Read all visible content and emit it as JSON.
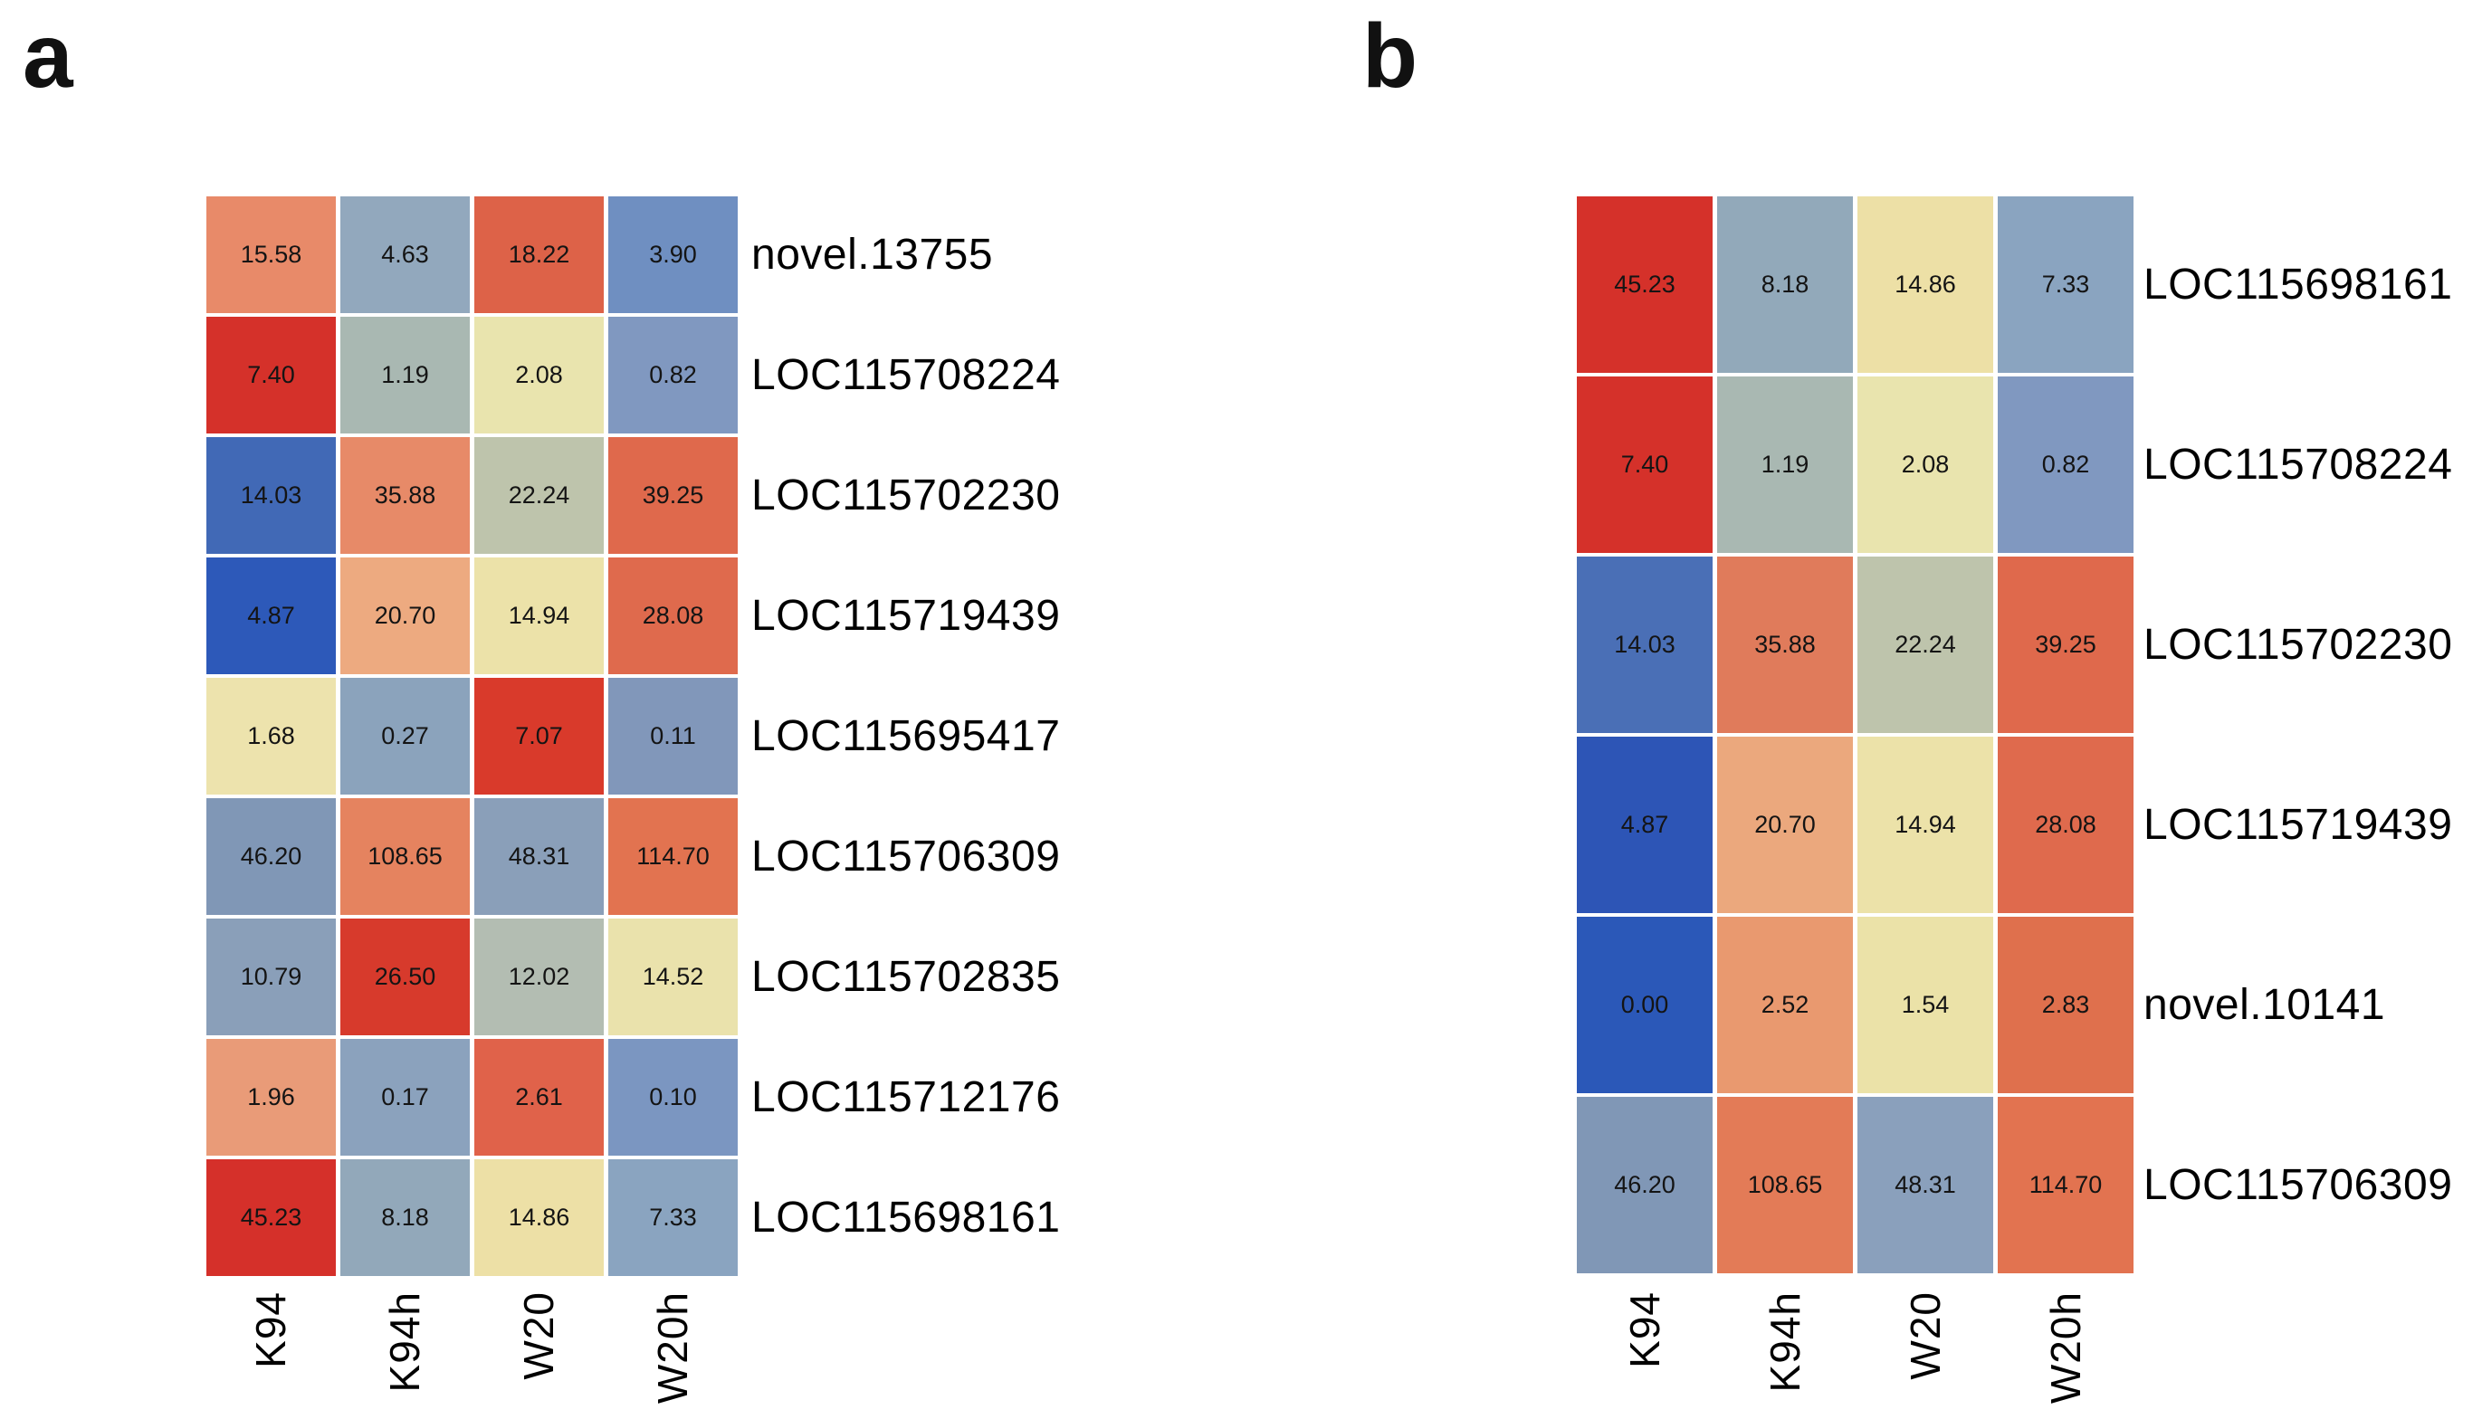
{
  "labels": {
    "panel_a": "a",
    "panel_b": "b"
  },
  "chart_data": [
    {
      "type": "heatmap",
      "panel": "a",
      "title": "a",
      "x_categories": [
        "K94",
        "K94h",
        "W20",
        "W20h"
      ],
      "y_categories": [
        "novel.13755",
        "LOC115708224",
        "LOC115702230",
        "LOC115719439",
        "LOC115695417",
        "LOC115706309",
        "LOC115702835",
        "LOC115712176",
        "LOC115698161"
      ],
      "values": [
        [
          15.58,
          4.63,
          18.22,
          3.9
        ],
        [
          7.4,
          1.19,
          2.08,
          0.82
        ],
        [
          14.03,
          35.88,
          22.24,
          39.25
        ],
        [
          4.87,
          20.7,
          14.94,
          28.08
        ],
        [
          1.68,
          0.27,
          7.07,
          0.11
        ],
        [
          46.2,
          108.65,
          48.31,
          114.7
        ],
        [
          10.79,
          26.5,
          12.02,
          14.52
        ],
        [
          1.96,
          0.17,
          2.61,
          0.1
        ],
        [
          45.23,
          8.18,
          14.86,
          7.33
        ]
      ],
      "cell_colors": [
        [
          "#e88a69",
          "#92a8bd",
          "#dd6248",
          "#6f8fc1"
        ],
        [
          "#d5312a",
          "#a9b8b2",
          "#e9e4ae",
          "#8098c0"
        ],
        [
          "#4169b6",
          "#e78a68",
          "#bec4ac",
          "#df694c"
        ],
        [
          "#2d59b9",
          "#edaa80",
          "#ece2a9",
          "#df6a4d"
        ],
        [
          "#ede3ad",
          "#8ba3bc",
          "#d93a2b",
          "#8197ba"
        ],
        [
          "#8097b6",
          "#e5835f",
          "#8a9fb9",
          "#e27350"
        ],
        [
          "#8a9fb9",
          "#d73a2c",
          "#b3bdb2",
          "#eae2ac"
        ],
        [
          "#e99b78",
          "#8ba2bd",
          "#e0624a",
          "#7b96c1"
        ],
        [
          "#d5302a",
          "#92a8ba",
          "#ede0a6",
          "#8aa4c0"
        ]
      ],
      "value_decimals": 2,
      "colormap": "RdYlBu reversed, scaled per row",
      "annotations": "values printed inside cells",
      "x_tick_rotation": -90,
      "legend": "none",
      "grid_gap_color": "#ffffff",
      "cell_text_color": "#141414"
    },
    {
      "type": "heatmap",
      "panel": "b",
      "title": "b",
      "x_categories": [
        "K94",
        "K94h",
        "W20",
        "W20h"
      ],
      "y_categories": [
        "LOC115698161",
        "LOC115708224",
        "LOC115702230",
        "LOC115719439",
        "novel.10141",
        "LOC115706309"
      ],
      "values": [
        [
          45.23,
          8.18,
          14.86,
          7.33
        ],
        [
          7.4,
          1.19,
          2.08,
          0.82
        ],
        [
          14.03,
          35.88,
          22.24,
          39.25
        ],
        [
          4.87,
          20.7,
          14.94,
          28.08
        ],
        [
          0.0,
          2.52,
          1.54,
          2.83
        ],
        [
          46.2,
          108.65,
          48.31,
          114.7
        ]
      ],
      "cell_colors": [
        [
          "#d5312a",
          "#92a9ba",
          "#ede0a6",
          "#8aa4c0"
        ],
        [
          "#d5312a",
          "#a9b8b2",
          "#e9e4ae",
          "#8098c0"
        ],
        [
          "#4a6fb6",
          "#e07b5b",
          "#bec4ac",
          "#df694c"
        ],
        [
          "#2d55b6",
          "#eba87d",
          "#ece2a9",
          "#df6a4d"
        ],
        [
          "#2b58b8",
          "#e9996f",
          "#ebe2a8",
          "#df704d"
        ],
        [
          "#8097b6",
          "#e37b57",
          "#8aa0bc",
          "#e27350"
        ]
      ],
      "value_decimals": 2,
      "colormap": "RdYlBu reversed, scaled per row",
      "annotations": "values printed inside cells",
      "x_tick_rotation": -90,
      "legend": "none",
      "grid_gap_color": "#ffffff",
      "cell_text_color": "#141414"
    }
  ]
}
